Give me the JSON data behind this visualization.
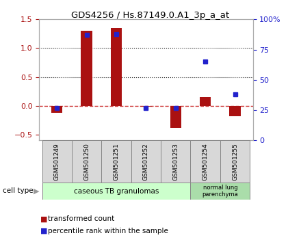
{
  "title": "GDS4256 / Hs.87149.0.A1_3p_a_at",
  "samples": [
    "GSM501249",
    "GSM501250",
    "GSM501251",
    "GSM501252",
    "GSM501253",
    "GSM501254",
    "GSM501255"
  ],
  "transformed_count": [
    -0.12,
    1.3,
    1.35,
    -0.02,
    -0.38,
    0.15,
    -0.18
  ],
  "percentile_rank": [
    27,
    87,
    88,
    27,
    27,
    65,
    38
  ],
  "ylim_left": [
    -0.6,
    1.5
  ],
  "ylim_right": [
    0,
    100
  ],
  "yticks_left": [
    -0.5,
    0.0,
    0.5,
    1.0,
    1.5
  ],
  "yticks_right": [
    0,
    25,
    50,
    75,
    100
  ],
  "ytick_labels_right": [
    "0",
    "25",
    "50",
    "75",
    "100%"
  ],
  "bar_color": "#aa1111",
  "dot_color": "#2222cc",
  "zero_line_color": "#cc3333",
  "dotted_line_color": "#222222",
  "group1_label": "caseous TB granulomas",
  "group2_label": "normal lung\nparenchyma",
  "cell_type_label": "cell type",
  "legend_bar_label": "transformed count",
  "legend_dot_label": "percentile rank within the sample",
  "group1_color": "#ccffcc",
  "group2_color": "#aaddaa",
  "bg_color": "#d8d8d8"
}
